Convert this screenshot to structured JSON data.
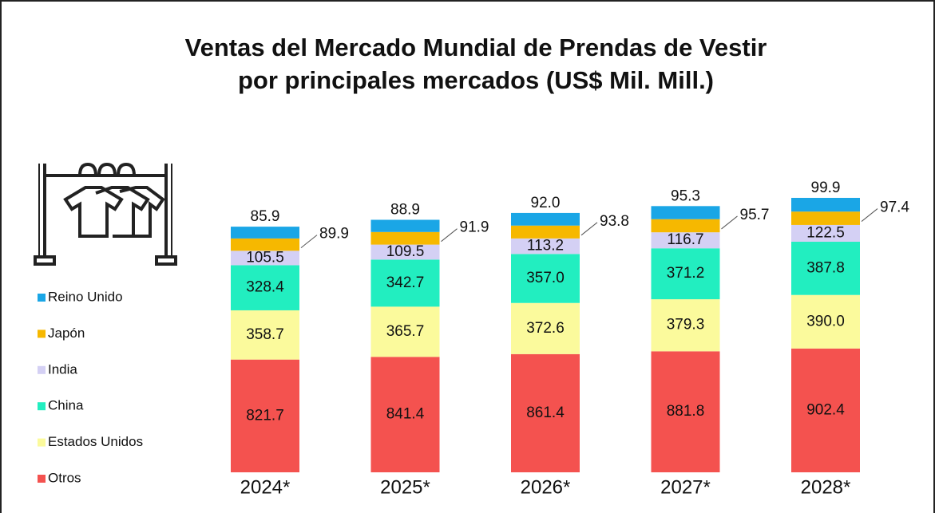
{
  "chart_data": {
    "type": "stacked_bar",
    "title": [
      "Ventas del Mercado Mundial de Prendas de Vestir",
      "por principales mercados  (US$ Mil. Mill.)"
    ],
    "categories": [
      "2024*",
      "2025*",
      "2026*",
      "2027*",
      "2028*"
    ],
    "series": [
      {
        "name": "Otros",
        "color": "#f4524f",
        "values": [
          821.7,
          841.4,
          861.4,
          881.8,
          902.4
        ],
        "value_labels": [
          "821.7",
          "841.4",
          "861.4",
          "881.8",
          "902.4"
        ]
      },
      {
        "name": "Estados Unidos",
        "color": "#fbfa9c",
        "values": [
          358.7,
          365.7,
          372.6,
          379.3,
          390.0
        ],
        "value_labels": [
          "358.7",
          "365.7",
          "372.6",
          "379.3",
          "390.0"
        ]
      },
      {
        "name": "China",
        "color": "#22eec0",
        "values": [
          328.4,
          342.7,
          357.0,
          371.2,
          387.8
        ],
        "value_labels": [
          "328.4",
          "342.7",
          "357.0",
          "371.2",
          "387.8"
        ]
      },
      {
        "name": "India",
        "color": "#d4d0f4",
        "values": [
          105.5,
          109.5,
          113.2,
          116.7,
          122.5
        ],
        "value_labels": [
          "105.5",
          "109.5",
          "113.2",
          "116.7",
          "122.5"
        ]
      },
      {
        "name": "Japón",
        "color": "#f6b800",
        "values": [
          89.9,
          91.9,
          93.8,
          95.7,
          97.4
        ],
        "value_labels": [
          "89.9",
          "91.9",
          "93.8",
          "95.7",
          "97.4"
        ]
      },
      {
        "name": "Reino Unido",
        "color": "#1aa6e6",
        "values": [
          85.9,
          88.9,
          92.0,
          95.3,
          99.9
        ],
        "value_labels": [
          "85.9",
          "88.9",
          "92.0",
          "95.3",
          "99.9"
        ]
      }
    ]
  }
}
